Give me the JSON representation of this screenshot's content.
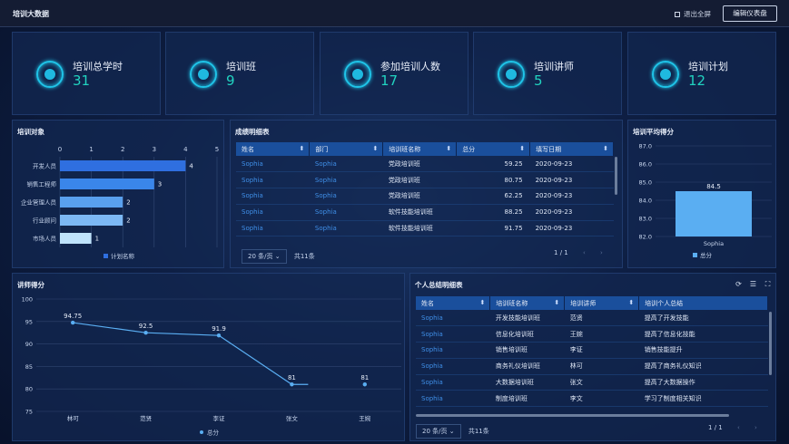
{
  "header": {
    "title": "培训大数据",
    "exit_label": "退出全屏",
    "edit_label": "编辑仪表盘"
  },
  "kpis": [
    {
      "label": "培训总学时",
      "value": "31"
    },
    {
      "label": "培训班",
      "value": "9"
    },
    {
      "label": "参加培训人数",
      "value": "17"
    },
    {
      "label": "培训讲师",
      "value": "5"
    },
    {
      "label": "培训计划",
      "value": "12"
    }
  ],
  "target_chart": {
    "title": "培训对象",
    "chart_data": {
      "type": "bar",
      "orientation": "horizontal",
      "categories": [
        "开发人员",
        "销售工程师",
        "企业管理人员",
        "行业顾问",
        "市场人员"
      ],
      "series": [
        {
          "name": "计划名称",
          "values": [
            4,
            3,
            2,
            2,
            1
          ]
        }
      ],
      "xlim": [
        0,
        5
      ],
      "xticks": [
        "0",
        "1",
        "2",
        "3",
        "4",
        "5"
      ],
      "legend": "bottom",
      "colors": [
        "#2f6fe0",
        "#3a86ea",
        "#59a0ee",
        "#7cb8f4",
        "#bfe3fb"
      ]
    }
  },
  "score_table": {
    "title": "成绩明细表",
    "columns": [
      "姓名",
      "部门",
      "培训班名称",
      "总分",
      "填写日期"
    ],
    "rows": [
      [
        "Sophia",
        "Sophia",
        "党政培训班",
        "59.25",
        "2020-09-23"
      ],
      [
        "Sophia",
        "Sophia",
        "党政培训班",
        "80.75",
        "2020-09-23"
      ],
      [
        "Sophia",
        "Sophia",
        "党政培训班",
        "62.25",
        "2020-09-23"
      ],
      [
        "Sophia",
        "Sophia",
        "软件技能培训班",
        "88.25",
        "2020-09-23"
      ],
      [
        "Sophia",
        "Sophia",
        "软件技能培训班",
        "91.75",
        "2020-09-23"
      ]
    ],
    "page_size": "20 条/页",
    "total": "共11条",
    "page": "1",
    "pages": "/ 1"
  },
  "avg_chart": {
    "title": "培训平均得分",
    "chart_data": {
      "type": "bar",
      "categories": [
        "Sophia"
      ],
      "series": [
        {
          "name": "总分",
          "values": [
            84.5
          ]
        }
      ],
      "ylim": [
        82,
        87
      ],
      "yticks": [
        "82.0",
        "83.0",
        "84.0",
        "85.0",
        "86.0",
        "87.0"
      ],
      "data_labels": [
        "84.5"
      ],
      "legend": "bottom",
      "color": "#5aaef2"
    }
  },
  "teacher_chart": {
    "title": "讲师得分",
    "chart_data": {
      "type": "line",
      "categories": [
        "林可",
        "范贤",
        "李证",
        "张文",
        "王婉"
      ],
      "series": [
        {
          "name": "总分",
          "values": [
            94.75,
            92.5,
            91.9,
            81,
            81
          ]
        }
      ],
      "data_labels": [
        "94.75",
        "92.5",
        "91.9",
        "81",
        "81"
      ],
      "ylim": [
        75,
        100
      ],
      "yticks": [
        "75",
        "80",
        "85",
        "90",
        "95",
        "100"
      ],
      "legend": "bottom",
      "color": "#5aaef2"
    }
  },
  "summary_table": {
    "title": "个人总结明细表",
    "columns": [
      "姓名",
      "培训班名称",
      "培训讲师",
      "培训个人总结"
    ],
    "rows": [
      [
        "Sophia",
        "开发技能培训班",
        "范贤",
        "提高了开发技能"
      ],
      [
        "Sophia",
        "信息化培训班",
        "王婉",
        "提高了信息化技能"
      ],
      [
        "Sophia",
        "销售培训班",
        "李证",
        "销售技能提升"
      ],
      [
        "Sophia",
        "商务礼仪培训班",
        "林可",
        "提高了商务礼仪知识"
      ],
      [
        "Sophia",
        "大数据培训班",
        "张文",
        "提高了大数据操作"
      ],
      [
        "Sophia",
        "制度培训班",
        "李文",
        "学习了制度相关知识"
      ]
    ],
    "page_size": "20 条/页",
    "total": "共11条",
    "page": "1",
    "pages": "/ 1",
    "icons": [
      "refresh-icon",
      "filter-icon",
      "fullscreen-icon"
    ]
  }
}
